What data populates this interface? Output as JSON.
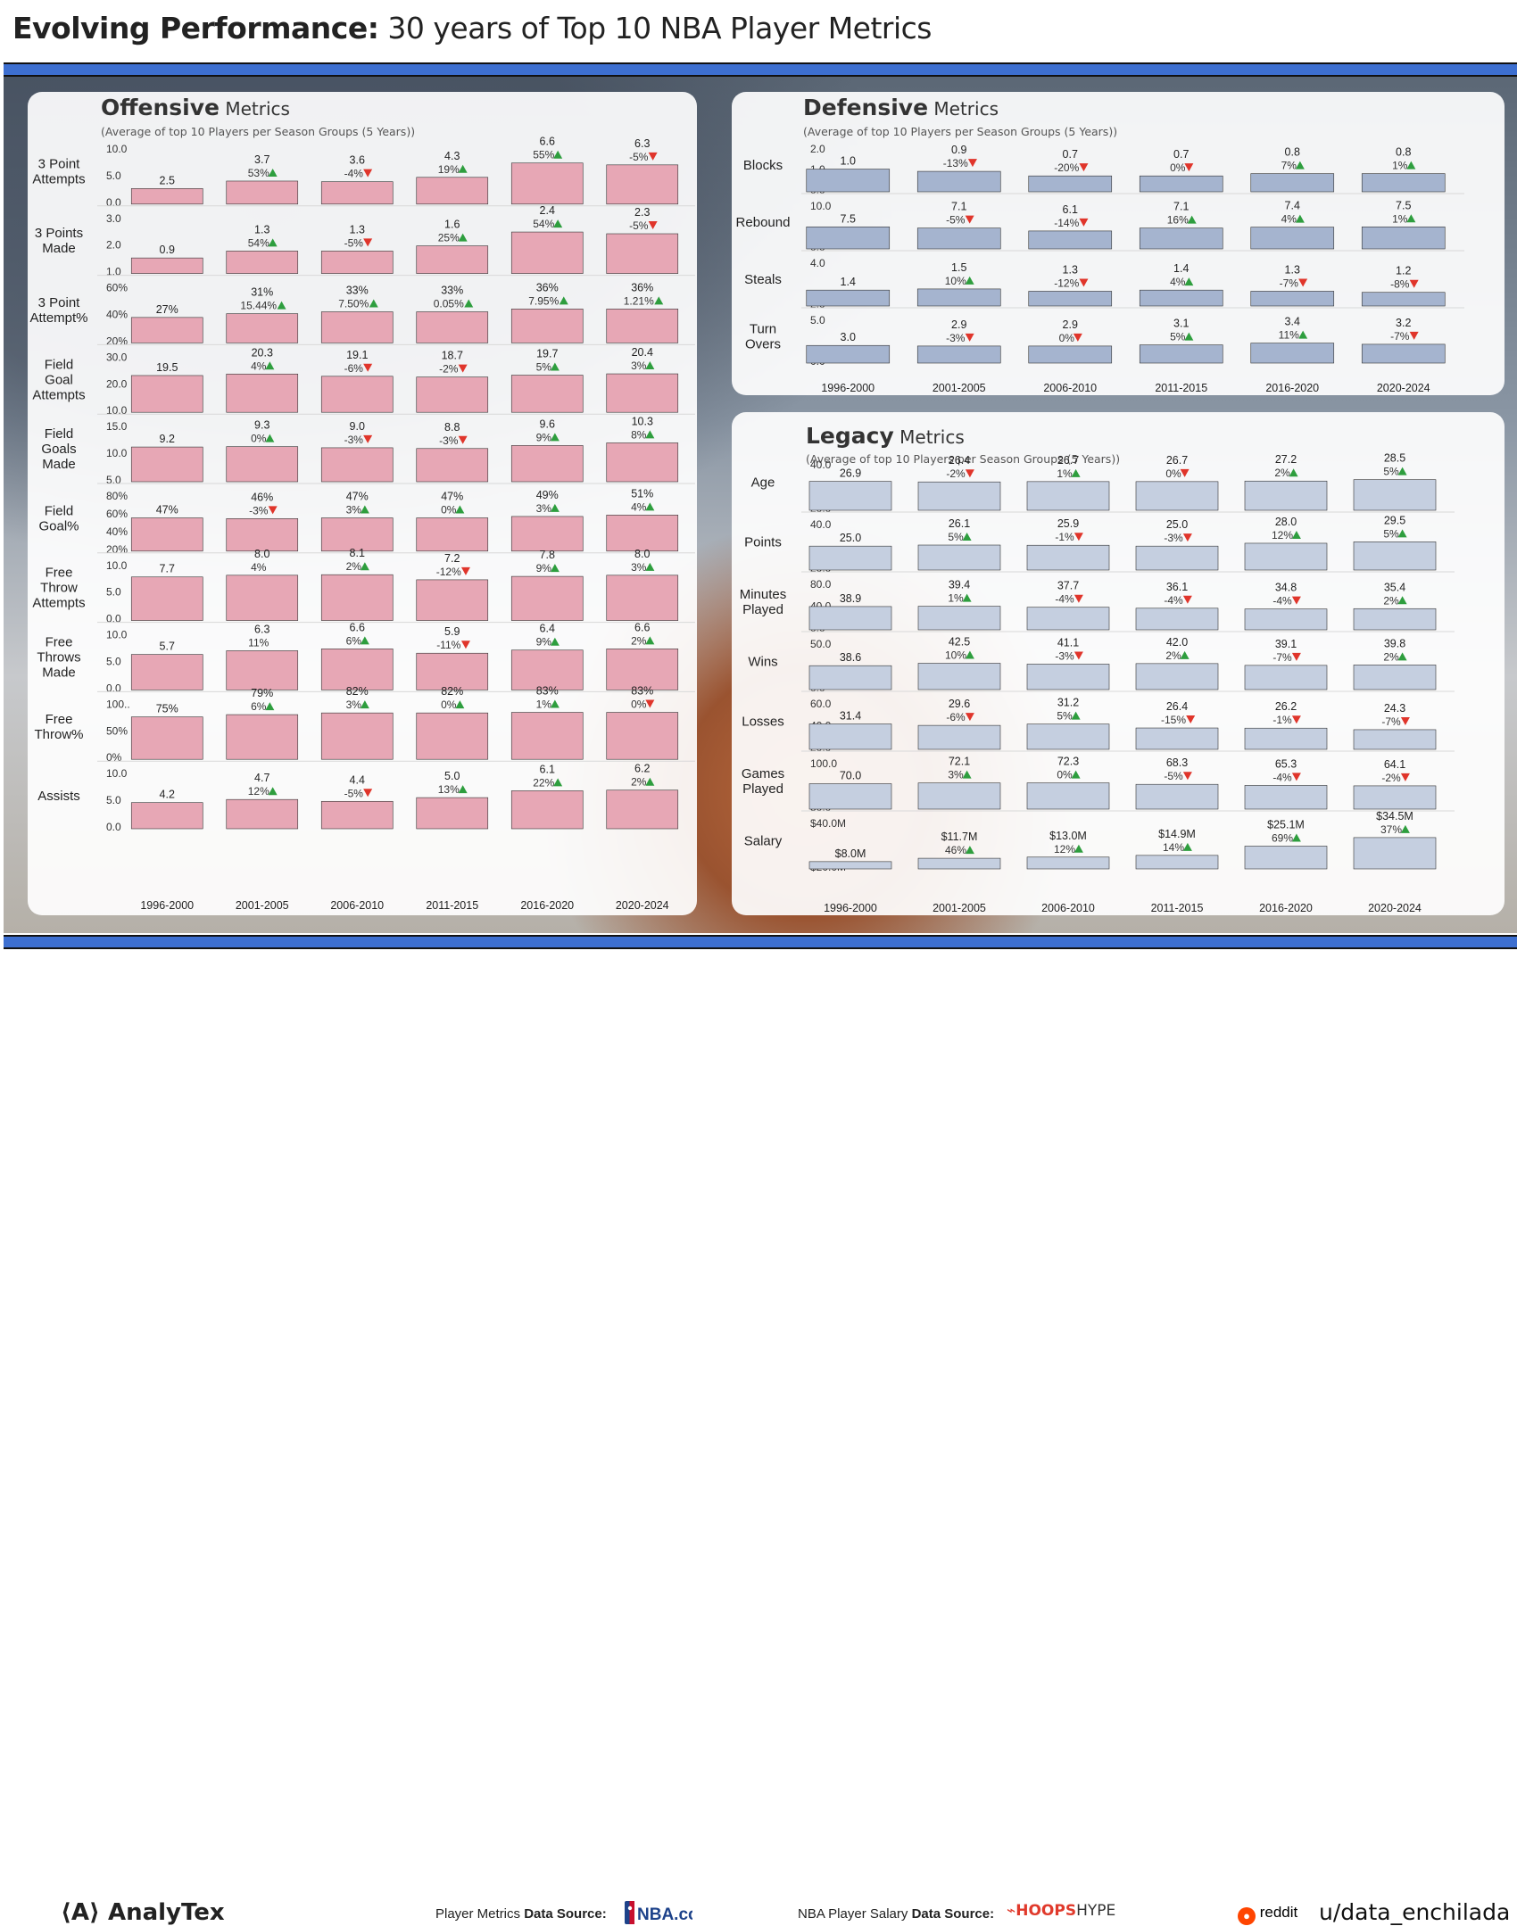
{
  "header": {
    "title_bold": "Evolving Performance:",
    "title_rest": " 30 years of Top 10 NBA Player Metrics"
  },
  "colors": {
    "offensive_bar": "#e7a7b5",
    "defensive_bar": "#a5b4cf",
    "legacy_bar": "#c5cfe0",
    "up_arrow": "#2e9e3e",
    "down_arrow": "#e0352b",
    "accent_blue": "#3d6fd0"
  },
  "offensive": {
    "title_bold": "Offensive",
    "title_rest": " Metrics",
    "subtitle": "(Average of top 10 Players per Season Groups (5 Years))"
  },
  "defensive": {
    "title_bold": "Defensive",
    "title_rest": " Metrics",
    "subtitle": "(Average of top 10 Players per Season Groups (5 Years))"
  },
  "legacy": {
    "title_bold": "Legacy",
    "title_rest": " Metrics",
    "subtitle": "(Average of top 10 Players per Season Groups (5 Years))"
  },
  "footer": {
    "analytex": "AnalyTex",
    "player_source_label": "Player Metrics ",
    "player_source_bold": "Data Source:",
    "nba_logo": "NBA.com",
    "salary_source_label": "NBA Player Salary ",
    "salary_source_bold": "Data Source:",
    "hoops_logo_a": "HOOPS",
    "hoops_logo_b": "HYPE",
    "reddit": "reddit",
    "user": "u/data_enchilada"
  },
  "chart_data": [
    {
      "type": "bar",
      "panel": "offensive",
      "categories": [
        "1996-2000",
        "2001-2005",
        "2006-2010",
        "2011-2015",
        "2016-2020",
        "2020-2024"
      ],
      "rows": [
        {
          "label": [
            "3 Point",
            "Attempts"
          ],
          "values": [
            2.5,
            3.7,
            3.6,
            4.3,
            6.6,
            6.3
          ],
          "labels": [
            "2.5",
            "3.7",
            "3.6",
            "4.3",
            "6.6",
            "6.3"
          ],
          "changes": [
            "",
            "53%",
            "-4%",
            "19%",
            "55%",
            "-5%"
          ],
          "dirs": [
            "",
            "up",
            "down",
            "up",
            "up",
            "down"
          ],
          "ylim": [
            0,
            10
          ],
          "ticks": [
            "10.0",
            "5.0",
            "0.0"
          ]
        },
        {
          "label": [
            "3 Points",
            "Made"
          ],
          "values": [
            0.9,
            1.3,
            1.3,
            1.6,
            2.4,
            2.3
          ],
          "labels": [
            "0.9",
            "1.3",
            "1.3",
            "1.6",
            "2.4",
            "2.3"
          ],
          "changes": [
            "",
            "54%",
            "-5%",
            "25%",
            "54%",
            "-5%"
          ],
          "dirs": [
            "",
            "up",
            "down",
            "up",
            "up",
            "down"
          ],
          "ylim": [
            0,
            3.6
          ],
          "ticks": [
            "3.0",
            "2.0",
            "1.0"
          ]
        },
        {
          "label": [
            "3 Point",
            "Attempt%"
          ],
          "values": [
            27,
            31,
            33,
            33,
            36,
            36
          ],
          "labels": [
            "27%",
            "31%",
            "33%",
            "33%",
            "36%",
            "36%"
          ],
          "changes": [
            "",
            "15.44%",
            "7.50%",
            "0.05%",
            "7.95%",
            "1.21%"
          ],
          "dirs": [
            "",
            "up",
            "up",
            "up",
            "up",
            "up"
          ],
          "ylim": [
            0,
            66
          ],
          "ticks": [
            "60%",
            "40%",
            "20%"
          ]
        },
        {
          "label": [
            "Field",
            "Goal",
            "Attempts"
          ],
          "values": [
            19.5,
            20.3,
            19.1,
            18.7,
            19.7,
            20.4
          ],
          "labels": [
            "19.5",
            "20.3",
            "19.1",
            "18.7",
            "19.7",
            "20.4"
          ],
          "changes": [
            "",
            "4%",
            "-6%",
            "-2%",
            "5%",
            "3%"
          ],
          "dirs": [
            "",
            "up",
            "down",
            "down",
            "up",
            "up"
          ],
          "ylim": [
            0,
            33
          ],
          "ticks": [
            "30.0",
            "20.0",
            "10.0"
          ]
        },
        {
          "label": [
            "Field",
            "Goals",
            "Made"
          ],
          "values": [
            9.2,
            9.3,
            9.0,
            8.8,
            9.6,
            10.3
          ],
          "labels": [
            "9.2",
            "9.3",
            "9.0",
            "8.8",
            "9.6",
            "10.3"
          ],
          "changes": [
            "",
            "0%",
            "-3%",
            "-3%",
            "9%",
            "8%"
          ],
          "dirs": [
            "",
            "up",
            "down",
            "down",
            "up",
            "up"
          ],
          "ylim": [
            0,
            16.5
          ],
          "ticks": [
            "15.0",
            "10.0",
            "5.0"
          ]
        },
        {
          "label": [
            "Field",
            "Goal%"
          ],
          "values": [
            47,
            46,
            47,
            47,
            49,
            51
          ],
          "labels": [
            "47%",
            "46%",
            "47%",
            "47%",
            "49%",
            "51%"
          ],
          "changes": [
            "",
            "-3%",
            "3%",
            "0%",
            "3%",
            "4%"
          ],
          "dirs": [
            "",
            "down",
            "up",
            "up",
            "up",
            "up"
          ],
          "ylim": [
            0,
            88
          ],
          "ticks": [
            "80%",
            "60%",
            "40%",
            "20%"
          ]
        },
        {
          "label": [
            "Free",
            "Throw",
            "Attempts"
          ],
          "values": [
            7.7,
            8.0,
            8.1,
            7.2,
            7.8,
            8.0
          ],
          "labels": [
            "7.7",
            "8.0",
            "8.1",
            "7.2",
            "7.8",
            "8.0"
          ],
          "changes": [
            "",
            "4%",
            "2%",
            "-12%",
            "9%",
            "3%"
          ],
          "dirs": [
            "",
            "",
            "up",
            "down",
            "up",
            "up"
          ],
          "ylim": [
            0,
            11
          ],
          "ticks": [
            "10.0",
            "5.0",
            "0.0"
          ]
        },
        {
          "label": [
            "Free",
            "Throws",
            "Made"
          ],
          "values": [
            5.7,
            6.3,
            6.6,
            5.9,
            6.4,
            6.6
          ],
          "labels": [
            "5.7",
            "6.3",
            "6.6",
            "5.9",
            "6.4",
            "6.6"
          ],
          "changes": [
            "",
            "11%",
            "6%",
            "-11%",
            "9%",
            "2%"
          ],
          "dirs": [
            "",
            "",
            "up",
            "down",
            "up",
            "up"
          ],
          "ylim": [
            0,
            10
          ],
          "ticks": [
            "10.0",
            "5.0",
            "0.0"
          ]
        },
        {
          "label": [
            "Free",
            "Throw%"
          ],
          "values": [
            75,
            79,
            82,
            82,
            83,
            83
          ],
          "labels": [
            "75%",
            "79%",
            "82%",
            "82%",
            "83%",
            "83%"
          ],
          "changes": [
            "",
            "6%",
            "3%",
            "0%",
            "1%",
            "0%"
          ],
          "dirs": [
            "",
            "up",
            "up",
            "up",
            "up",
            "down"
          ],
          "ylim": [
            0,
            110
          ],
          "ticks": [
            "100..",
            "50%",
            "0%"
          ]
        },
        {
          "label": [
            "Assists"
          ],
          "values": [
            4.2,
            4.7,
            4.4,
            5.0,
            6.1,
            6.2
          ],
          "labels": [
            "4.2",
            "4.7",
            "4.4",
            "5.0",
            "6.1",
            "6.2"
          ],
          "changes": [
            "",
            "12%",
            "-5%",
            "13%",
            "22%",
            "2%"
          ],
          "dirs": [
            "",
            "up",
            "down",
            "up",
            "up",
            "up"
          ],
          "ylim": [
            0,
            10
          ],
          "ticks": [
            "10.0",
            "5.0",
            "0.0"
          ]
        }
      ]
    },
    {
      "type": "bar",
      "panel": "defensive",
      "categories": [
        "1996-2000",
        "2001-2005",
        "2006-2010",
        "2011-2015",
        "2016-2020",
        "2020-2024"
      ],
      "rows": [
        {
          "label": [
            "Blocks"
          ],
          "values": [
            1.0,
            0.9,
            0.7,
            0.7,
            0.8,
            0.8
          ],
          "labels": [
            "1.0",
            "0.9",
            "0.7",
            "0.7",
            "0.8",
            "0.8"
          ],
          "changes": [
            "",
            "-13%",
            "-20%",
            "0%",
            "7%",
            "1%"
          ],
          "dirs": [
            "",
            "down",
            "down",
            "down",
            "up",
            "up"
          ],
          "ylim": [
            0,
            2.2
          ],
          "ticks": [
            "2.0",
            "1.0",
            "0.0"
          ]
        },
        {
          "label": [
            "Rebound"
          ],
          "values": [
            7.5,
            7.1,
            6.1,
            7.1,
            7.4,
            7.5
          ],
          "labels": [
            "7.5",
            "7.1",
            "6.1",
            "7.1",
            "7.4",
            "7.5"
          ],
          "changes": [
            "",
            "-5%",
            "-14%",
            "16%",
            "4%",
            "1%"
          ],
          "dirs": [
            "",
            "down",
            "down",
            "up",
            "up",
            "up"
          ],
          "ylim": [
            0,
            17
          ],
          "ticks": [
            "10.0",
            "0.0"
          ]
        },
        {
          "label": [
            "Steals"
          ],
          "values": [
            1.4,
            1.5,
            1.3,
            1.4,
            1.3,
            1.2
          ],
          "labels": [
            "1.4",
            "1.5",
            "1.3",
            "1.4",
            "1.3",
            "1.2"
          ],
          "changes": [
            "",
            "10%",
            "-12%",
            "4%",
            "-7%",
            "-8%"
          ],
          "dirs": [
            "",
            "up",
            "down",
            "up",
            "down",
            "down"
          ],
          "ylim": [
            0,
            4.4
          ],
          "ticks": [
            "4.0",
            "2.0"
          ]
        },
        {
          "label": [
            "Turn",
            "Overs"
          ],
          "values": [
            3.0,
            2.9,
            2.9,
            3.1,
            3.4,
            3.2
          ],
          "labels": [
            "3.0",
            "2.9",
            "2.9",
            "3.1",
            "3.4",
            "3.2"
          ],
          "changes": [
            "",
            "-3%",
            "0%",
            "5%",
            "11%",
            "-7%"
          ],
          "dirs": [
            "",
            "down",
            "down",
            "up",
            "up",
            "down"
          ],
          "ylim": [
            0,
            8.5
          ],
          "ticks": [
            "5.0",
            "0.0"
          ]
        }
      ]
    },
    {
      "type": "bar",
      "panel": "legacy",
      "categories": [
        "1996-2000",
        "2001-2005",
        "2006-2010",
        "2011-2015",
        "2016-2020",
        "2020-2024"
      ],
      "rows": [
        {
          "label": [
            "Age"
          ],
          "values": [
            26.9,
            26.4,
            26.7,
            26.7,
            27.2,
            28.5
          ],
          "labels": [
            "26.9",
            "26.4",
            "26.7",
            "26.7",
            "27.2",
            "28.5"
          ],
          "changes": [
            "",
            "-2%",
            "1%",
            "0%",
            "2%",
            "5%"
          ],
          "dirs": [
            "",
            "down",
            "up",
            "down",
            "up",
            "up"
          ],
          "ylim": [
            0,
            49
          ],
          "ticks": [
            "40.0",
            "20.0"
          ]
        },
        {
          "label": [
            "Points"
          ],
          "values": [
            25.0,
            26.1,
            25.9,
            25.0,
            28.0,
            29.5
          ],
          "labels": [
            "25.0",
            "26.1",
            "25.9",
            "25.0",
            "28.0",
            "29.5"
          ],
          "changes": [
            "",
            "5%",
            "-1%",
            "-3%",
            "12%",
            "5%"
          ],
          "dirs": [
            "",
            "up",
            "down",
            "down",
            "up",
            "up"
          ],
          "ylim": [
            0,
            55
          ],
          "ticks": [
            "40.0",
            "20.0"
          ]
        },
        {
          "label": [
            "Minutes",
            "Played"
          ],
          "values": [
            38.9,
            39.4,
            37.7,
            36.1,
            34.8,
            35.4
          ],
          "labels": [
            "38.9",
            "39.4",
            "37.7",
            "36.1",
            "34.8",
            "35.4"
          ],
          "changes": [
            "",
            "1%",
            "-4%",
            "-4%",
            "-4%",
            "2%"
          ],
          "dirs": [
            "",
            "up",
            "down",
            "down",
            "down",
            "up"
          ],
          "ylim": [
            0,
            88
          ],
          "ticks": [
            "80.0",
            "40.0",
            "0.0"
          ]
        },
        {
          "label": [
            "Wins"
          ],
          "values": [
            38.6,
            42.5,
            41.1,
            42.0,
            39.1,
            39.8
          ],
          "labels": [
            "38.6",
            "42.5",
            "41.1",
            "42.0",
            "39.1",
            "39.8"
          ],
          "changes": [
            "",
            "10%",
            "-3%",
            "2%",
            "-7%",
            "2%"
          ],
          "dirs": [
            "",
            "up",
            "down",
            "up",
            "down",
            "up"
          ],
          "ylim": [
            0,
            85
          ],
          "ticks": [
            "50.0",
            "0.0"
          ]
        },
        {
          "label": [
            "Losses"
          ],
          "values": [
            31.4,
            29.6,
            31.2,
            26.4,
            26.2,
            24.3
          ],
          "labels": [
            "31.4",
            "29.6",
            "31.2",
            "26.4",
            "26.2",
            "24.3"
          ],
          "changes": [
            "",
            "-6%",
            "5%",
            "-15%",
            "-1%",
            "-7%"
          ],
          "dirs": [
            "",
            "down",
            "up",
            "down",
            "down",
            "down"
          ],
          "ylim": [
            0,
            65
          ],
          "ticks": [
            "60.0",
            "40.0",
            "20.0"
          ]
        },
        {
          "label": [
            "Games",
            "Played"
          ],
          "values": [
            70.0,
            72.1,
            72.3,
            68.3,
            65.3,
            64.1
          ],
          "labels": [
            "70.0",
            "72.1",
            "72.3",
            "68.3",
            "65.3",
            "64.1"
          ],
          "changes": [
            "",
            "3%",
            "0%",
            "-5%",
            "-4%",
            "-2%"
          ],
          "dirs": [
            "",
            "up",
            "up",
            "down",
            "down",
            "down"
          ],
          "ylim": [
            0,
            145
          ],
          "ticks": [
            "100.0",
            "50.0"
          ]
        },
        {
          "label": [
            "Salary"
          ],
          "values": [
            8.0,
            11.7,
            13.0,
            14.9,
            25.1,
            34.5
          ],
          "labels": [
            "$8.0M",
            "$11.7M",
            "$13.0M",
            "$14.9M",
            "$25.1M",
            "$34.5M"
          ],
          "changes": [
            "",
            "46%",
            "12%",
            "14%",
            "69%",
            "37%"
          ],
          "dirs": [
            "",
            "up",
            "up",
            "up",
            "up",
            "up"
          ],
          "ylim": [
            0,
            58
          ],
          "ticks": [
            "$40.0M",
            "$20.0M"
          ]
        }
      ]
    }
  ]
}
